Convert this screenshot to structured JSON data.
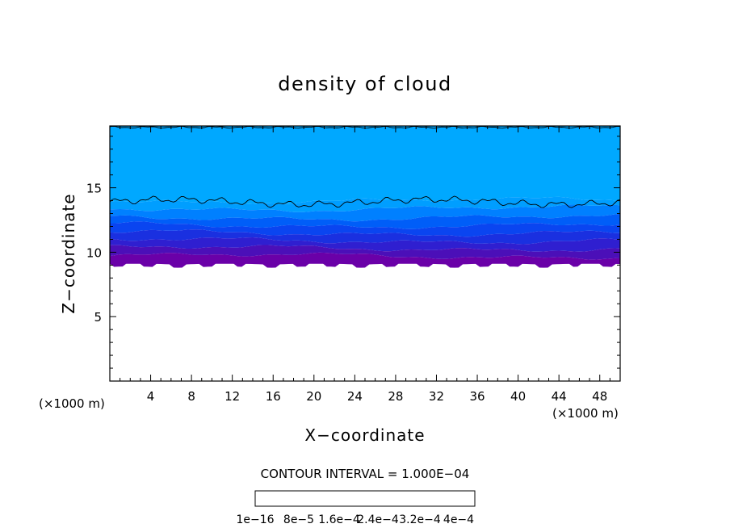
{
  "chart_data": {
    "type": "heatmap",
    "title": "density of cloud",
    "xlabel": "X−coordinate",
    "ylabel": "Z−coordinate",
    "x_unit_left": "(×1000 m)",
    "x_unit_right": "(×1000 m)",
    "xlim": [
      0,
      50
    ],
    "ylim": [
      0,
      19.8
    ],
    "x_ticks": [
      4,
      8,
      12,
      16,
      20,
      24,
      28,
      32,
      36,
      40,
      44,
      48
    ],
    "x_tick_labels": [
      "4",
      "8",
      "12",
      "16",
      "20",
      "24",
      "28",
      "32",
      "36",
      "40",
      "44",
      "48"
    ],
    "y_ticks": [
      5,
      10,
      15
    ],
    "y_tick_labels": [
      "5",
      "10",
      "15"
    ],
    "contour_interval_text": "CONTOUR INTERVAL = 1.000E−04",
    "colorbar": {
      "colors": [
        "#6a00a8",
        "#4b0fb8",
        "#2f1fd0",
        "#1a30e0",
        "#0a45f0",
        "#005ef8",
        "#0080ff",
        "#009eff",
        "#00b8ff",
        "#00d0f0",
        "#00e0d0",
        "#00e8b0",
        "#00f090",
        "#10f070",
        "#30f050",
        "#50f030",
        "#80f020",
        "#b0f010",
        "#e0f000",
        "#ffe000",
        "#ffc000",
        "#ffa000",
        "#ff8000",
        "#ff6020",
        "#ff5050",
        "#ff6868",
        "#ff8080",
        "#ff9a9a"
      ],
      "tick_labels": [
        "1e−16",
        "8e−5",
        "1.6e−4",
        "2.4e−4",
        "3.2e−4",
        "4e−4"
      ]
    },
    "layers": [
      {
        "z_bottom": 9.1,
        "z_top": 9.7,
        "color": "#6a00a8"
      },
      {
        "z_bottom": 9.7,
        "z_top": 10.3,
        "color": "#4b0fb8"
      },
      {
        "z_bottom": 10.3,
        "z_top": 10.9,
        "color": "#2f1fd0"
      },
      {
        "z_bottom": 10.9,
        "z_top": 11.5,
        "color": "#1a30e0"
      },
      {
        "z_bottom": 11.5,
        "z_top": 12.1,
        "color": "#0a45f0"
      },
      {
        "z_bottom": 12.1,
        "z_top": 12.7,
        "color": "#005ef8"
      },
      {
        "z_bottom": 12.7,
        "z_top": 13.4,
        "color": "#0080ff"
      },
      {
        "z_bottom": 13.4,
        "z_top": 14.0,
        "color": "#009eff"
      },
      {
        "z_bottom": 14.0,
        "z_top": 19.8,
        "color": "#00a8ff"
      }
    ],
    "cloud_base_z": 9.0,
    "contour_lines_z": [
      13.9,
      19.7
    ]
  }
}
